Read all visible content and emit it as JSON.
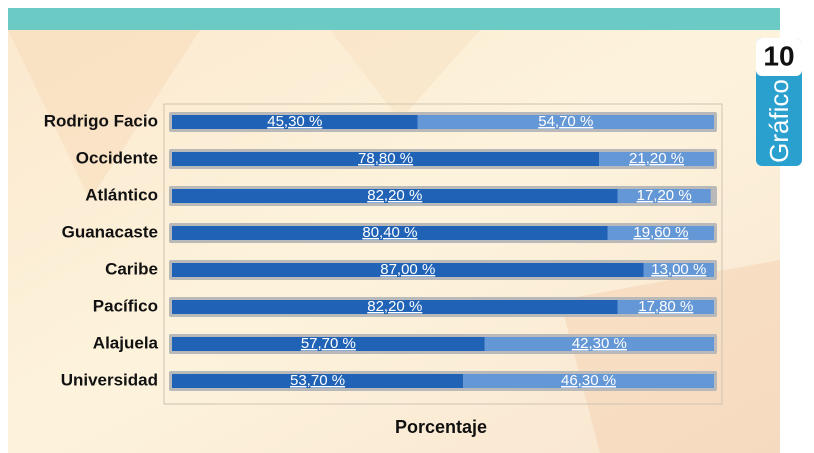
{
  "chart_data": {
    "type": "stacked_barh",
    "categories": [
      "Rodrigo Facio",
      "Occidente",
      "Atlántico",
      "Guanacaste",
      "Caribe",
      "Pacífico",
      "Alajuela",
      "Universidad"
    ],
    "series": [
      {
        "color": "#1f62b6",
        "values": [
          45.3,
          78.8,
          82.2,
          80.4,
          87.0,
          82.2,
          57.7,
          53.7
        ],
        "value_labels": [
          "45,30 %",
          "78,80 %",
          "82,20 %",
          "80,40 %",
          "87,00 %",
          "82,20 %",
          "57,70 %",
          "53,70 %"
        ]
      },
      {
        "color": "#6497d6",
        "values": [
          54.7,
          21.2,
          17.2,
          19.6,
          13.0,
          17.8,
          42.3,
          46.3
        ],
        "value_labels": [
          "54,70 %",
          "21,20 %",
          "17,20 %",
          "19,60 %",
          "13,00 %",
          "17,80 %",
          "42,30 %",
          "46,30 %"
        ]
      }
    ],
    "xlim": [
      0,
      100
    ],
    "x_label": "Porcentaje"
  },
  "badge": {
    "number": "10",
    "label": "Gráfico"
  }
}
